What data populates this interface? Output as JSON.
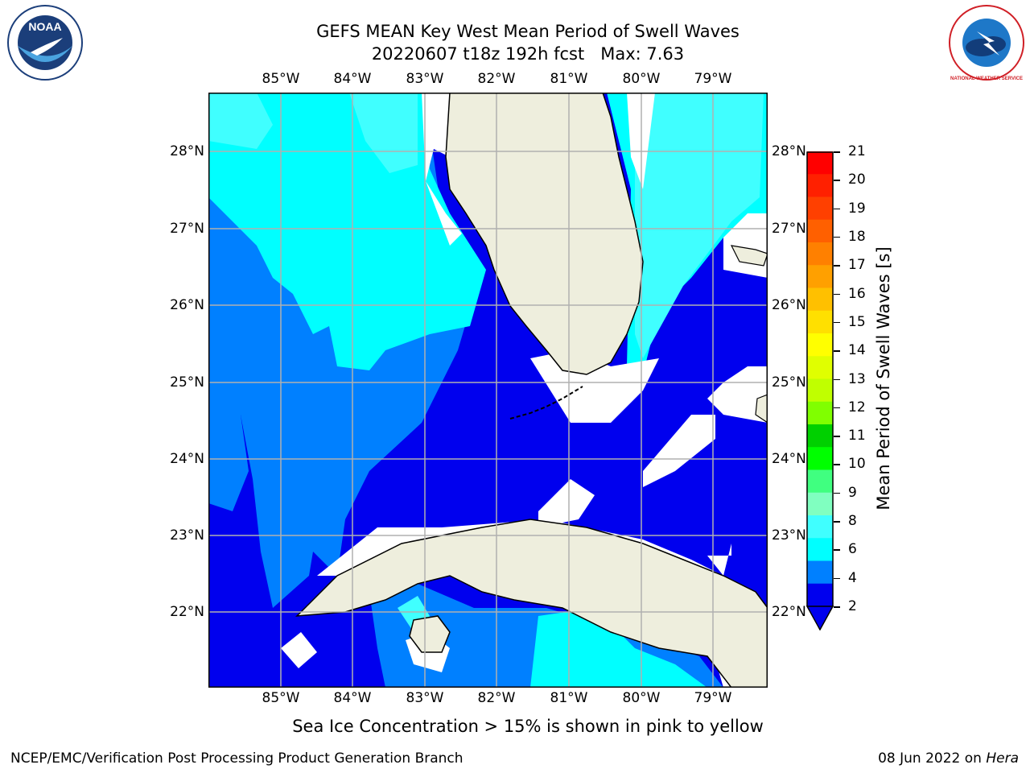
{
  "title": {
    "line1": "GEFS MEAN Key West Mean Period of Swell Waves",
    "line2": "20220607 t18z 192h fcst   Max: 7.63"
  },
  "logos": {
    "left_icon": "noaa-logo-icon",
    "left_text": "NOAA",
    "right_icon": "nws-logo-icon",
    "right_text": "NATIONAL WEATHER SERVICE"
  },
  "map": {
    "lon_ticks": [
      "85°W",
      "84°W",
      "83°W",
      "82°W",
      "81°W",
      "80°W",
      "79°W"
    ],
    "lat_ticks": [
      "28°N",
      "27°N",
      "26°N",
      "25°N",
      "24°N",
      "23°N",
      "22°N"
    ],
    "land_color": "#eeeedd",
    "shading_colors": [
      "#0000ee",
      "#0080ff",
      "#00ffff",
      "#40ffff"
    ]
  },
  "colorbar": {
    "label": "Mean Period of Swell Waves [s]",
    "ticks": [
      "21",
      "20",
      "19",
      "18",
      "17",
      "16",
      "15",
      "14",
      "13",
      "12",
      "11",
      "10",
      "9",
      "8",
      "6",
      "4",
      "2"
    ],
    "colors": [
      "#ff0000",
      "#ff2000",
      "#ff4000",
      "#ff6000",
      "#ff8000",
      "#ffa000",
      "#ffc000",
      "#ffe000",
      "#ffff00",
      "#e0ff00",
      "#c0ff00",
      "#80ff00",
      "#00d000",
      "#00ff00",
      "#40ff80",
      "#80ffc0",
      "#40ffff",
      "#00ffff",
      "#0080ff",
      "#0000ee"
    ]
  },
  "note": "Sea Ice Concentration > 15% is shown in pink to yellow",
  "footer": {
    "left": "NCEP/EMC/Verification Post Processing Product Generation Branch",
    "right_date": "08 Jun 2022 on ",
    "right_host": "Hera"
  }
}
